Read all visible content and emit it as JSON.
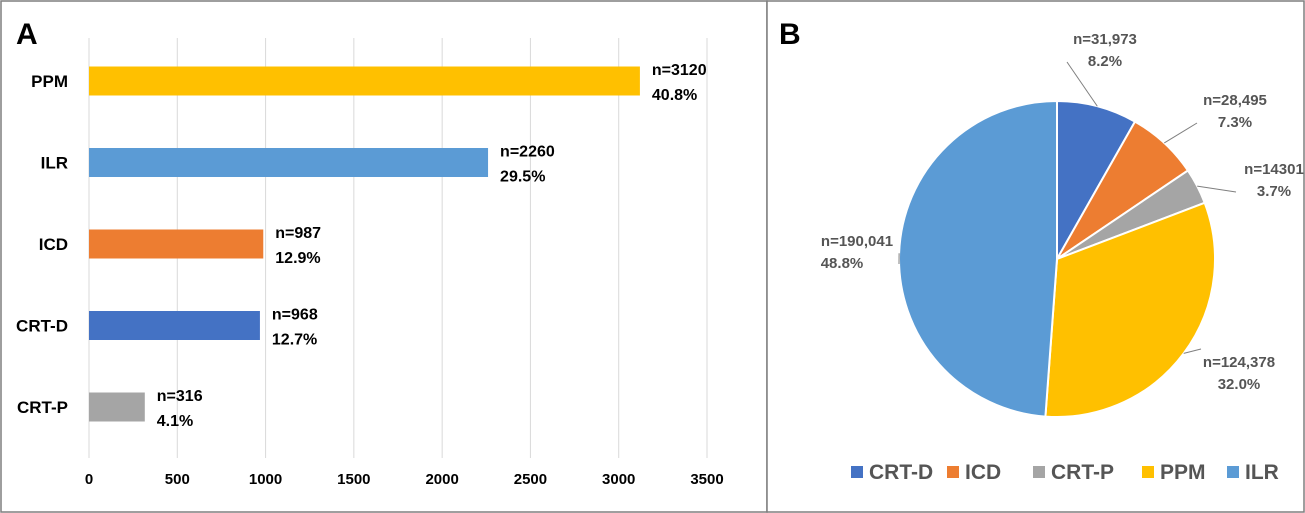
{
  "panels": {
    "a_letter": "A",
    "b_letter": "B"
  },
  "chart_data": [
    {
      "type": "bar",
      "orientation": "horizontal",
      "categories": [
        "PPM",
        "ILR",
        "ICD",
        "CRT-D",
        "CRT-P"
      ],
      "values": [
        3120,
        2260,
        987,
        968,
        316
      ],
      "value_labels": [
        "n=3120",
        "n=2260",
        "n=987",
        "n=968",
        "n=316"
      ],
      "percent_labels": [
        "40.8%",
        "29.5%",
        "12.9%",
        "12.7%",
        "4.1%"
      ],
      "colors": [
        "#FFC000",
        "#5B9BD5",
        "#ED7D31",
        "#4472C4",
        "#A5A5A5"
      ],
      "xlim": [
        0,
        3500
      ],
      "xticks": [
        "0",
        "500",
        "1000",
        "1500",
        "2000",
        "2500",
        "3000",
        "3500"
      ],
      "grid": true,
      "title": "",
      "xlabel": "",
      "ylabel": ""
    },
    {
      "type": "pie",
      "categories": [
        "CRT-D",
        "ICD",
        "CRT-P",
        "PPM",
        "ILR"
      ],
      "values": [
        31973,
        28495,
        14301,
        124378,
        190041
      ],
      "value_labels": [
        "n=31,973",
        "n=28,495",
        "n=14301",
        "n=124,378",
        "n=190,041"
      ],
      "percent_labels": [
        "8.2%",
        "7.3%",
        "3.7%",
        "32.0%",
        "48.8%"
      ],
      "colors": [
        "#4472C4",
        "#ED7D31",
        "#A5A5A5",
        "#FFC000",
        "#5B9BD5"
      ],
      "legend": {
        "position": "bottom",
        "items": [
          "CRT-D",
          "ICD",
          "CRT-P",
          "PPM",
          "ILR"
        ]
      },
      "title": ""
    }
  ]
}
